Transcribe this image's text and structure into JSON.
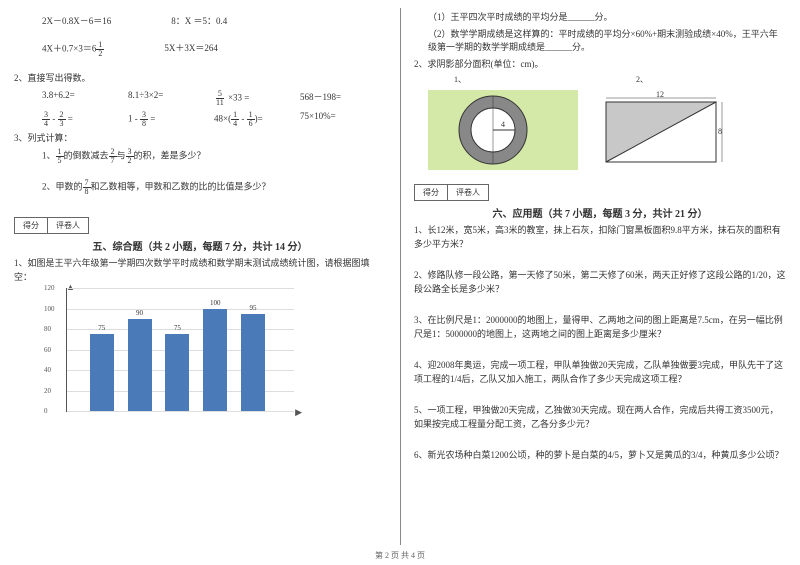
{
  "left": {
    "eq_row1": {
      "a": "2X－0.8X－6＝16",
      "b": "8：X ＝5：0.4"
    },
    "eq_row2": {
      "a": "4X＋0.7×3＝6",
      "a_frac_n": "1",
      "a_frac_d": "2",
      "b": "5X＋3X＝264"
    },
    "q2": "2、直接写出得数。",
    "calc1": {
      "a": "3.8+6.2=",
      "b": "8.1÷3×2=",
      "c_frac_n": "5",
      "c_frac_d": "11",
      "c_tail": "×33 =",
      "d": "568－198="
    },
    "calc2": {
      "a1_n": "3",
      "a1_d": "4",
      "a2_n": "2",
      "a2_d": "3",
      "b1_n": "3",
      "b1_d": "8",
      "c_pre": "48×(",
      "c1_n": "1",
      "c1_d": "4",
      "c2_n": "1",
      "c2_d": "6",
      "c_post": ")=",
      "d": "75×10%="
    },
    "q3": "3、列式计算：",
    "q3_1_pre": "1、",
    "q3_1_f1n": "1",
    "q3_1_f1d": "5",
    "q3_1_mid1": "的倒数减去",
    "q3_1_f2n": "2",
    "q3_1_f2d": "7",
    "q3_1_mid2": "与",
    "q3_1_f3n": "3",
    "q3_1_f3d": "2",
    "q3_1_tail": "的积，差是多少？",
    "q3_2_pre": "2、甲数的",
    "q3_2_fn": "7",
    "q3_2_fd": "8",
    "q3_2_tail": "和乙数相等，甲数和乙数的比的比值是多少？",
    "score_a": "得分",
    "score_b": "评卷人",
    "sec5": "五、综合题（共 2 小题，每题 7 分，共计 14 分）",
    "q5_1": "1、如图是王平六年级第一学期四次数学平时成绩和数学期末测试成绩统计图，请根据图填空：",
    "chart": {
      "y_max": 120,
      "y_step": 20,
      "y_ticks": [
        "0",
        "20",
        "40",
        "60",
        "80",
        "100",
        "120"
      ],
      "bars": [
        {
          "v": 75,
          "label": "75"
        },
        {
          "v": 90,
          "label": "90"
        },
        {
          "v": 75,
          "label": "75"
        },
        {
          "v": 100,
          "label": "100"
        },
        {
          "v": 95,
          "label": "95"
        }
      ],
      "bar_color": "#4a7ab8",
      "grid_color": "#dddddd",
      "axis_color": "#555555"
    }
  },
  "right": {
    "r1": "（1）王平四次平时成绩的平均分是______分。",
    "r2": "（2）数学学期成绩是这样算的：平时成绩的平均分×60%+期末测验成绩×40%，王平六年级第一学期的数学学期成绩是______分。",
    "r3": "2、求阴影部分面积(单位：cm)。",
    "fig1_label": "1、",
    "fig2_label": "2、",
    "ring_r": "4",
    "rect_w": "12",
    "rect_h": "8",
    "score_a": "得分",
    "score_b": "评卷人",
    "sec6": "六、应用题（共 7 小题，每题 3 分，共计 21 分）",
    "q1": "1、长12米，宽5米，高3米的教室，抹上石灰，扣除门窗黑板面积9.8平方米，抹石灰的面积有多少平方米？",
    "q2": "2、修路队修一段公路，第一天修了50米，第二天修了60米，两天正好修了这段公路的1/20，这段公路全长是多少米？",
    "q3": "3、在比例尺是1：2000000的地图上，量得甲、乙两地之间的图上距离是7.5cm，在另一幅比例尺是1：5000000的地图上，这两地之间的图上距离是多少厘米？",
    "q4": "4、迎2008年奥运，完成一项工程，甲队单独做20天完成，乙队单独做要3完成，甲队先干了这项工程的1/4后，乙队又加入施工，两队合作了多少天完成这项工程？",
    "q5": "5、一项工程，甲独做20天完成，乙独做30天完成。现在两人合作，完成后共得工资3500元，如果按完成工程量分配工资，乙各分多少元？",
    "q6": "6、新光农场种白菜1200公顷，种的萝卜是白菜的4/5，萝卜又是黄瓜的3/4，种黄瓜多少公顷？"
  },
  "footer": "第 2 页 共 4 页"
}
